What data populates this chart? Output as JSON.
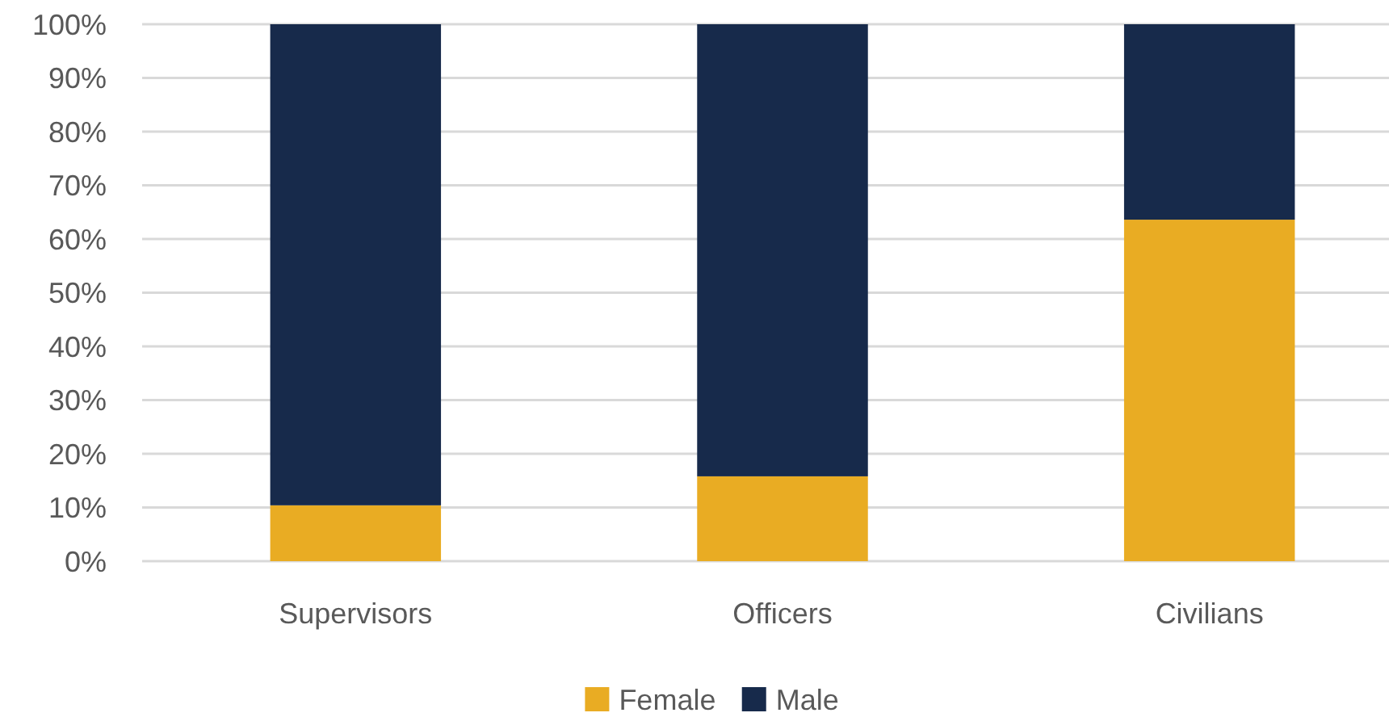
{
  "chart_data": {
    "type": "bar",
    "stacked": true,
    "categories": [
      "Supervisors",
      "Officers",
      "Civilians"
    ],
    "series": [
      {
        "name": "Female",
        "color": "#e9ac23",
        "values": [
          10.4,
          15.8,
          63.6
        ]
      },
      {
        "name": "Male",
        "color": "#172a4b",
        "values": [
          89.6,
          84.2,
          36.4
        ]
      }
    ],
    "ylim": [
      0,
      100
    ],
    "yticks": [
      {
        "value": 0,
        "label": "0%"
      },
      {
        "value": 10,
        "label": "10%"
      },
      {
        "value": 20,
        "label": "20%"
      },
      {
        "value": 30,
        "label": "30%"
      },
      {
        "value": 40,
        "label": "40%"
      },
      {
        "value": 50,
        "label": "50%"
      },
      {
        "value": 60,
        "label": "60%"
      },
      {
        "value": 70,
        "label": "70%"
      },
      {
        "value": 80,
        "label": "80%"
      },
      {
        "value": 90,
        "label": "90%"
      },
      {
        "value": 100,
        "label": "100%"
      }
    ],
    "grid": "y",
    "legend": "bottom"
  }
}
